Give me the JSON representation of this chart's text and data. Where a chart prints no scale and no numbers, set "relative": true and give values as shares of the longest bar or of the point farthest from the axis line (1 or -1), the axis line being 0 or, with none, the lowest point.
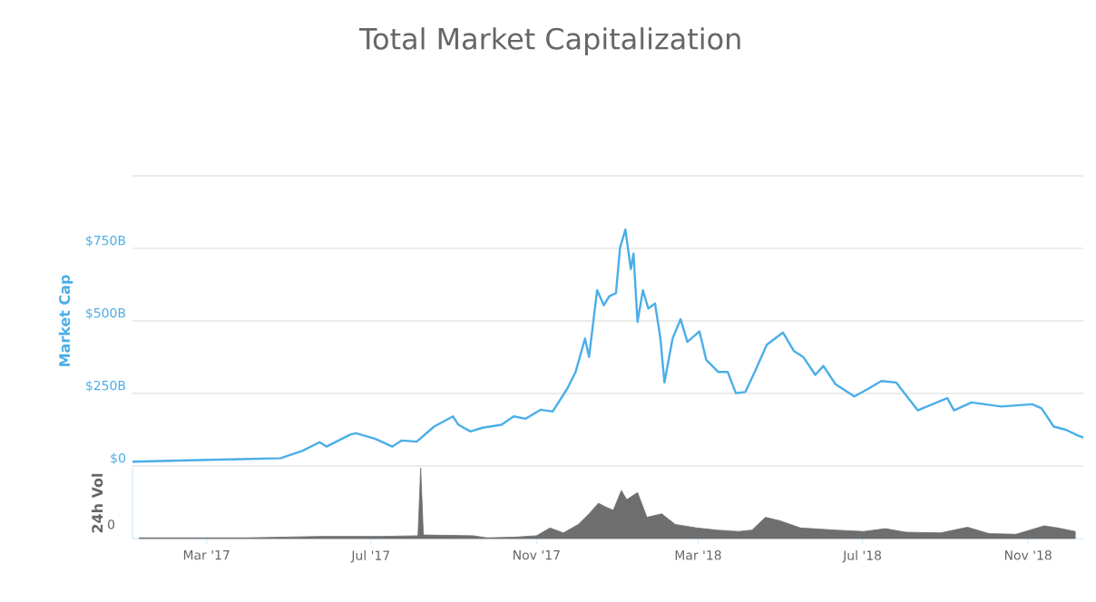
{
  "chart_data": [
    {
      "type": "line",
      "title": "Total Market Capitalization",
      "ylabel": "Market Cap",
      "color": "#4aaee8",
      "grid": "y",
      "tick_labels": "y",
      "xlim": [
        "2017-01-05",
        "2018-12-12"
      ],
      "ylim": [
        0,
        1000
      ],
      "yticks": [
        {
          "value": 0,
          "label": "$0"
        },
        {
          "value": 250,
          "label": "$250B"
        },
        {
          "value": 500,
          "label": "$500B"
        },
        {
          "value": 750,
          "label": "$750B"
        },
        {
          "value": 1000,
          "label": null
        }
      ],
      "x": [
        "2017-01-05",
        "2017-03-02",
        "2017-04-25",
        "2017-05-11",
        "2017-05-24",
        "2017-05-29",
        "2017-06-16",
        "2017-06-20",
        "2017-07-04",
        "2017-07-17",
        "2017-07-24",
        "2017-08-04",
        "2017-08-17",
        "2017-08-31",
        "2017-09-04",
        "2017-09-13",
        "2017-09-22",
        "2017-10-06",
        "2017-10-15",
        "2017-10-24",
        "2017-11-04",
        "2017-11-13",
        "2017-11-24",
        "2017-11-30",
        "2017-12-07",
        "2017-12-10",
        "2017-12-16",
        "2017-12-21",
        "2017-12-25",
        "2017-12-30",
        "2018-01-02",
        "2018-01-06",
        "2018-01-10",
        "2018-01-12",
        "2018-01-15",
        "2018-01-19",
        "2018-01-23",
        "2018-01-28",
        "2018-02-01",
        "2018-02-04",
        "2018-02-10",
        "2018-02-16",
        "2018-02-21",
        "2018-03-02",
        "2018-03-07",
        "2018-03-16",
        "2018-03-23",
        "2018-03-29",
        "2018-04-05",
        "2018-04-12",
        "2018-04-21",
        "2018-05-03",
        "2018-05-11",
        "2018-05-18",
        "2018-05-27",
        "2018-06-02",
        "2018-06-11",
        "2018-06-25",
        "2018-07-06",
        "2018-07-15",
        "2018-07-26",
        "2018-08-11",
        "2018-09-02",
        "2018-09-07",
        "2018-09-20",
        "2018-10-12",
        "2018-11-04",
        "2018-11-11",
        "2018-11-20",
        "2018-11-29",
        "2018-12-08",
        "2018-12-12"
      ],
      "values": [
        15,
        21,
        27,
        52,
        82,
        67,
        109,
        113,
        94,
        67,
        88,
        84,
        136,
        171,
        142,
        119,
        132,
        142,
        171,
        163,
        194,
        188,
        268,
        324,
        439,
        376,
        606,
        554,
        585,
        596,
        752,
        815,
        679,
        732,
        497,
        606,
        543,
        560,
        439,
        288,
        439,
        506,
        428,
        464,
        366,
        324,
        324,
        251,
        255,
        324,
        418,
        460,
        397,
        376,
        314,
        345,
        282,
        240,
        268,
        293,
        288,
        192,
        234,
        192,
        219,
        205,
        213,
        199,
        136,
        125,
        105,
        98
      ]
    },
    {
      "type": "area",
      "relative": true,
      "ylabel": "24h Vol",
      "color": "#6e6e6e",
      "annotations": [
        "0"
      ],
      "xlim": [
        "2017-01-05",
        "2018-12-12"
      ],
      "xticks": [
        {
          "value": "2017-03-01",
          "label": "Mar '17"
        },
        {
          "value": "2017-07-01",
          "label": "Jul '17"
        },
        {
          "value": "2017-11-01",
          "label": "Nov '17"
        },
        {
          "value": "2018-03-01",
          "label": "Mar '18"
        },
        {
          "value": "2018-07-01",
          "label": "Jul '18"
        },
        {
          "value": "2018-11-01",
          "label": "Nov '18"
        }
      ],
      "x": [
        "2017-01-10",
        "2017-02-15",
        "2017-04-01",
        "2017-05-24",
        "2017-06-15",
        "2017-07-10",
        "2017-08-05",
        "2017-08-07",
        "2017-08-09",
        "2017-09-15",
        "2017-09-25",
        "2017-10-16",
        "2017-11-01",
        "2017-11-11",
        "2017-11-21",
        "2017-12-02",
        "2017-12-10",
        "2017-12-17",
        "2017-12-22",
        "2017-12-28",
        "2018-01-03",
        "2018-01-07",
        "2018-01-15",
        "2018-01-22",
        "2018-02-02",
        "2018-02-12",
        "2018-02-28",
        "2018-03-15",
        "2018-03-31",
        "2018-04-10",
        "2018-04-20",
        "2018-05-01",
        "2018-05-16",
        "2018-06-11",
        "2018-07-02",
        "2018-07-18",
        "2018-08-02",
        "2018-08-28",
        "2018-09-17",
        "2018-10-03",
        "2018-10-23",
        "2018-11-13",
        "2018-11-23",
        "2018-12-06"
      ],
      "values": [
        0.01,
        0.01,
        0.01,
        0.03,
        0.03,
        0.03,
        0.04,
        1.0,
        0.05,
        0.04,
        0.01,
        0.02,
        0.04,
        0.15,
        0.08,
        0.2,
        0.35,
        0.5,
        0.45,
        0.4,
        0.68,
        0.55,
        0.65,
        0.3,
        0.35,
        0.2,
        0.15,
        0.12,
        0.1,
        0.12,
        0.3,
        0.25,
        0.15,
        0.12,
        0.1,
        0.14,
        0.09,
        0.08,
        0.16,
        0.07,
        0.06,
        0.18,
        0.15,
        0.1
      ]
    }
  ]
}
